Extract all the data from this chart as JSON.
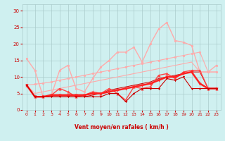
{
  "x": [
    0,
    1,
    2,
    3,
    4,
    5,
    6,
    7,
    8,
    9,
    10,
    11,
    12,
    13,
    14,
    15,
    16,
    17,
    18,
    19,
    20,
    21,
    22,
    23
  ],
  "series": [
    {
      "name": "rafales_max",
      "y": [
        15.5,
        12.0,
        4.0,
        4.5,
        12.0,
        13.5,
        6.5,
        5.5,
        9.5,
        13.0,
        15.0,
        17.5,
        17.5,
        19.0,
        14.5,
        20.0,
        24.5,
        26.5,
        21.0,
        20.5,
        19.5,
        11.5,
        11.5,
        13.5
      ],
      "color": "#ffaaaa",
      "linewidth": 1.0,
      "marker": "o",
      "markersize": 2.0
    },
    {
      "name": "rafales_trend_upper",
      "y": [
        7.5,
        7.8,
        8.1,
        8.5,
        9.0,
        9.5,
        10.0,
        10.5,
        11.0,
        11.5,
        12.0,
        12.5,
        13.0,
        13.5,
        14.0,
        14.5,
        15.0,
        15.5,
        16.0,
        16.5,
        17.0,
        17.5,
        11.5,
        11.5
      ],
      "color": "#ffaaaa",
      "linewidth": 0.8,
      "marker": "o",
      "markersize": 2.0
    },
    {
      "name": "rafales_trend_lower",
      "y": [
        7.5,
        5.0,
        5.5,
        6.0,
        6.5,
        7.0,
        7.5,
        8.0,
        8.5,
        9.0,
        9.5,
        10.0,
        10.5,
        11.0,
        11.5,
        12.0,
        12.5,
        13.0,
        13.5,
        14.0,
        14.5,
        11.5,
        11.5,
        11.5
      ],
      "color": "#ffaaaa",
      "linewidth": 0.8,
      "marker": null,
      "markersize": 0
    },
    {
      "name": "vent_max",
      "y": [
        7.5,
        4.0,
        4.0,
        4.5,
        6.5,
        5.5,
        4.0,
        4.5,
        5.5,
        5.0,
        6.5,
        5.0,
        3.0,
        7.0,
        6.5,
        7.0,
        10.5,
        11.0,
        9.5,
        11.5,
        12.0,
        12.0,
        6.5,
        6.5
      ],
      "color": "#ff4444",
      "linewidth": 1.0,
      "marker": "^",
      "markersize": 2.5
    },
    {
      "name": "vent_mean",
      "y": [
        7.5,
        4.0,
        4.0,
        4.5,
        4.5,
        4.5,
        4.5,
        4.5,
        5.0,
        5.0,
        5.5,
        6.0,
        6.5,
        7.0,
        7.5,
        8.0,
        9.0,
        10.0,
        10.0,
        11.0,
        11.5,
        8.0,
        6.5,
        6.5
      ],
      "color": "#ff2222",
      "linewidth": 1.8,
      "marker": "v",
      "markersize": 2.5
    },
    {
      "name": "vent_min",
      "y": [
        7.5,
        4.0,
        4.0,
        4.0,
        4.0,
        4.0,
        4.0,
        4.0,
        4.0,
        4.0,
        5.0,
        5.0,
        2.5,
        5.0,
        6.5,
        6.5,
        6.5,
        9.5,
        9.0,
        10.0,
        6.5,
        6.5,
        6.5,
        6.5
      ],
      "color": "#cc0000",
      "linewidth": 0.8,
      "marker": "v",
      "markersize": 2.0
    },
    {
      "name": "vent_flat",
      "y": [
        7.5,
        4.0,
        4.0,
        4.0,
        4.0,
        4.0,
        4.0,
        4.0,
        4.5,
        5.0,
        6.0,
        6.5,
        7.0,
        7.5,
        8.0,
        8.5,
        9.5,
        10.0,
        10.5,
        11.0,
        11.5,
        11.5,
        6.5,
        6.5
      ],
      "color": "#cc0000",
      "linewidth": 0.7,
      "marker": null,
      "markersize": 0
    }
  ],
  "arrow_angles": [
    270,
    270,
    270,
    270,
    270,
    270,
    270,
    270,
    270,
    270,
    270,
    225,
    215,
    270,
    270,
    225,
    225,
    225,
    270,
    270,
    270,
    270,
    270,
    270
  ],
  "xlabel": "Vent moyen/en rafales ( km/h )",
  "xlim": [
    -0.5,
    23.5
  ],
  "ylim": [
    0,
    32
  ],
  "yticks": [
    0,
    5,
    10,
    15,
    20,
    25,
    30
  ],
  "xticks": [
    0,
    1,
    2,
    3,
    4,
    5,
    6,
    7,
    8,
    9,
    10,
    11,
    12,
    13,
    14,
    15,
    16,
    17,
    18,
    19,
    20,
    21,
    22,
    23
  ],
  "bg_color": "#cff0f0",
  "grid_color": "#aacccc",
  "text_color": "#cc0000"
}
